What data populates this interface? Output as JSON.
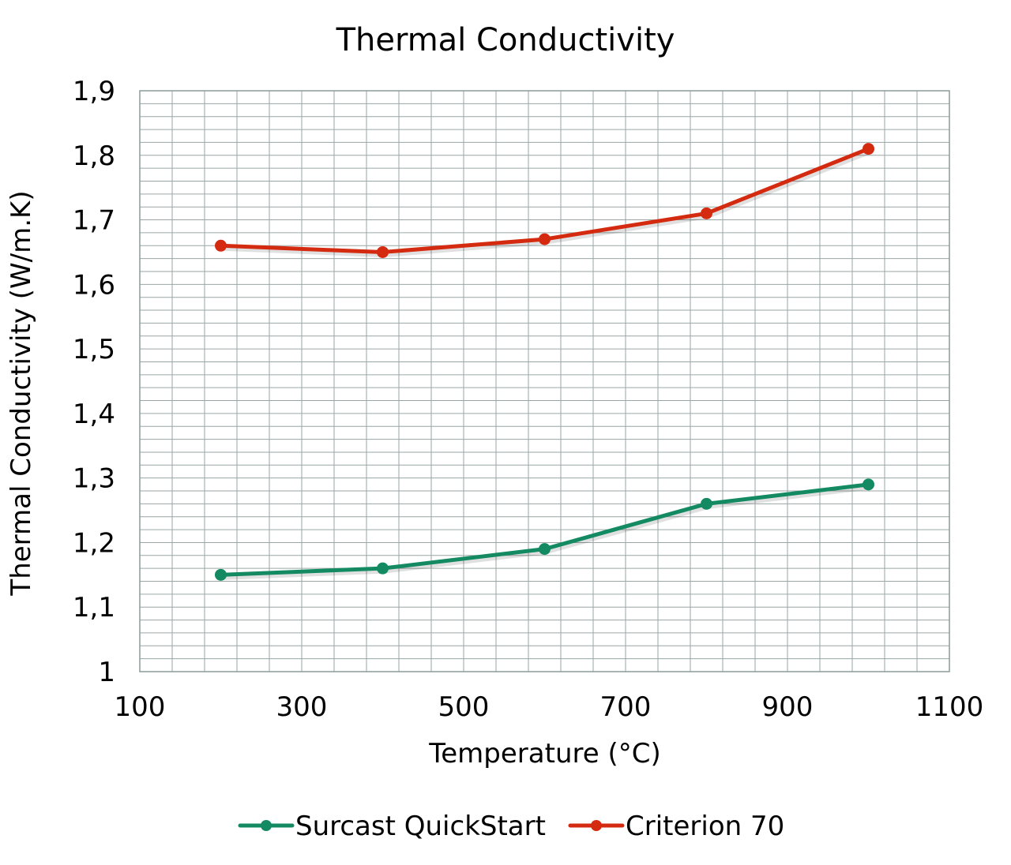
{
  "chart_data": {
    "type": "line",
    "title": "Thermal Conductivity",
    "xlabel": "Temperature (°C)",
    "ylabel": "Thermal Conductivity (W/m.K)",
    "xlim": [
      100,
      1100
    ],
    "ylim": [
      1,
      1.9
    ],
    "x_ticks": [
      "100",
      "300",
      "500",
      "700",
      "900",
      "1100"
    ],
    "y_ticks": [
      "1",
      "1,1",
      "1,2",
      "1,3",
      "1,4",
      "1,5",
      "1,6",
      "1,7",
      "1,8",
      "1,9"
    ],
    "grid": true,
    "legend_position": "bottom",
    "series": [
      {
        "name": "Surcast QuickStart",
        "color": "#138a62",
        "x": [
          200,
          400,
          600,
          800,
          1000
        ],
        "y": [
          1.15,
          1.16,
          1.19,
          1.26,
          1.29
        ]
      },
      {
        "name": "Criterion 70",
        "color": "#d42a10",
        "x": [
          200,
          400,
          600,
          800,
          1000
        ],
        "y": [
          1.66,
          1.65,
          1.67,
          1.71,
          1.81
        ]
      }
    ]
  }
}
